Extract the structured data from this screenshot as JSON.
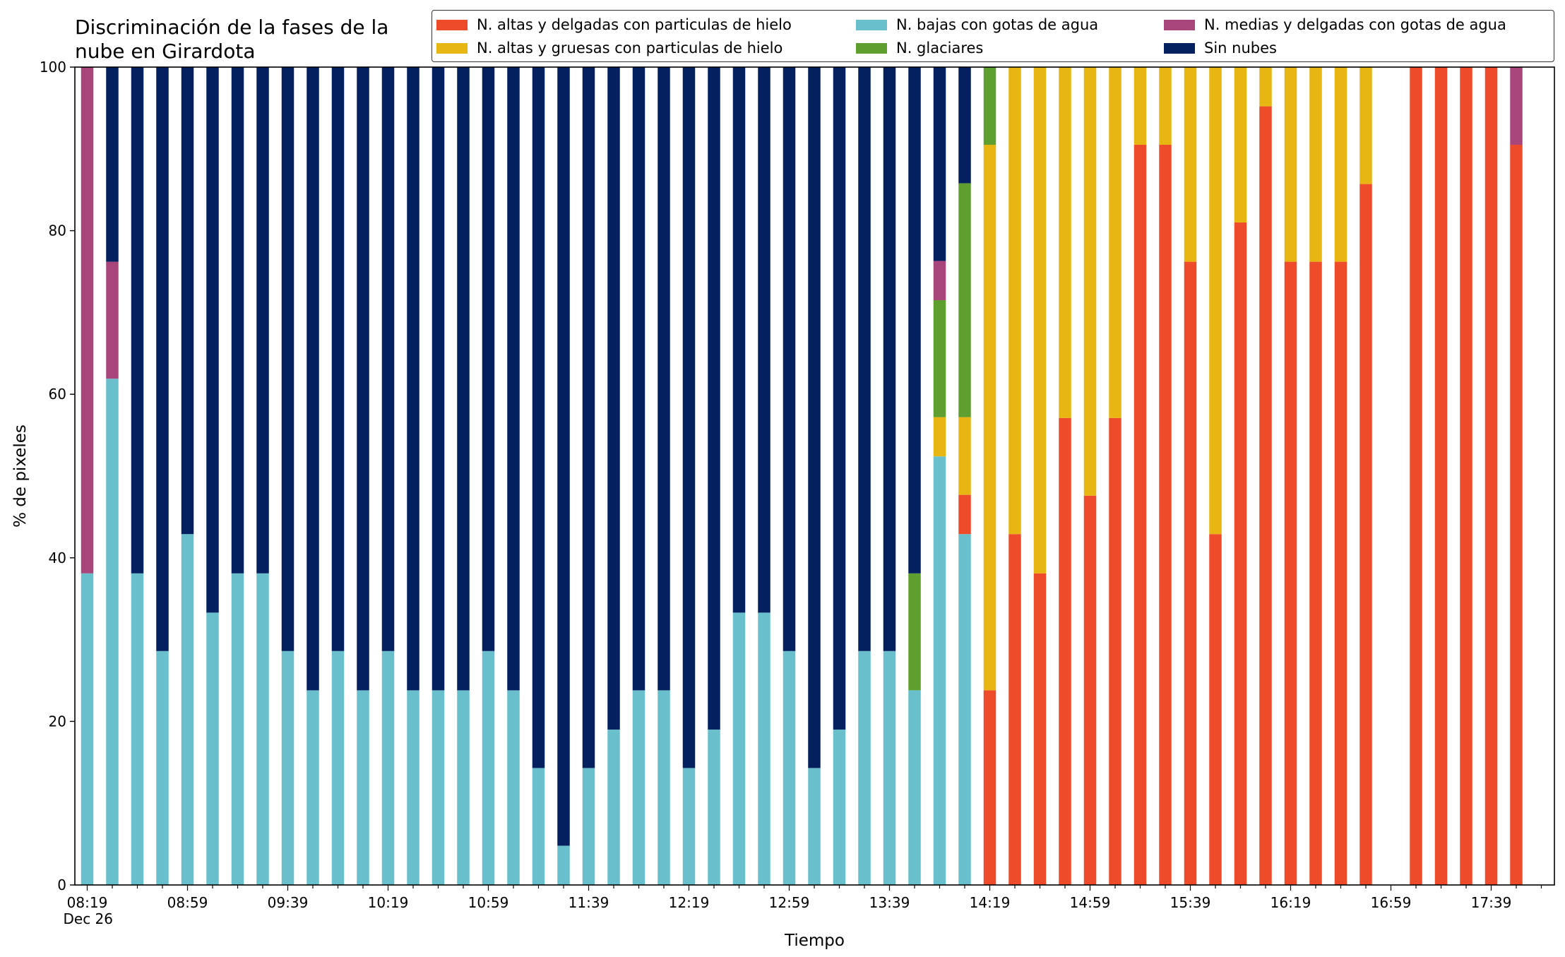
{
  "chart_data": {
    "type": "bar",
    "stacked": true,
    "title": "Discriminación de la fases de la\nnube en Girardota",
    "xlabel": "Tiempo",
    "ylabel": "% de pixeles",
    "ylim": [
      0,
      100
    ],
    "yticks": [
      0,
      20,
      40,
      60,
      80,
      100
    ],
    "xtick_labels": [
      "08:19\nDec 26",
      "08:59",
      "09:39",
      "10:19",
      "10:59",
      "11:39",
      "12:19",
      "12:59",
      "13:39",
      "14:19",
      "14:59",
      "15:39",
      "16:19",
      "16:59",
      "17:39"
    ],
    "legend_position": "top-right",
    "grid": false,
    "categories": [
      "08:19",
      "08:29",
      "08:39",
      "08:49",
      "08:59",
      "09:09",
      "09:19",
      "09:29",
      "09:39",
      "09:49",
      "09:59",
      "10:09",
      "10:19",
      "10:29",
      "10:39",
      "10:49",
      "10:59",
      "11:09",
      "11:19",
      "11:29",
      "11:39",
      "11:49",
      "11:59",
      "12:09",
      "12:19",
      "12:29",
      "12:39",
      "12:49",
      "12:59",
      "13:09",
      "13:19",
      "13:29",
      "13:39",
      "13:49",
      "13:59",
      "14:09",
      "14:19",
      "14:29",
      "14:39",
      "14:49",
      "14:59",
      "15:09",
      "15:19",
      "15:29",
      "15:39",
      "15:49",
      "15:59",
      "16:09",
      "16:19",
      "16:29",
      "16:39",
      "16:49",
      "16:59",
      "17:09",
      "17:19",
      "17:29",
      "17:39",
      "17:49"
    ],
    "series": [
      {
        "name": "N. altas y delgadas con particulas de hielo",
        "color": "#ee4b2b",
        "values": [
          0,
          0,
          0,
          0,
          0,
          0,
          0,
          0,
          0,
          0,
          0,
          0,
          0,
          0,
          0,
          0,
          0,
          0,
          0,
          0,
          0,
          0,
          0,
          0,
          0,
          0,
          0,
          0,
          0,
          0,
          0,
          0,
          0,
          0,
          0,
          4.8,
          23.8,
          42.9,
          38.1,
          57.1,
          47.6,
          57.1,
          90.5,
          90.5,
          76.2,
          42.9,
          81.0,
          95.2,
          76.2,
          76.2,
          76.2,
          85.7,
          0,
          100,
          100,
          100,
          100,
          90.5
        ]
      },
      {
        "name": "N. altas y gruesas con particulas de hielo",
        "color": "#e8b613",
        "values": [
          0,
          0,
          0,
          0,
          0,
          0,
          0,
          0,
          0,
          0,
          0,
          0,
          0,
          0,
          0,
          0,
          0,
          0,
          0,
          0,
          0,
          0,
          0,
          0,
          0,
          0,
          0,
          0,
          0,
          0,
          0,
          0,
          0,
          0,
          4.8,
          9.5,
          66.7,
          57.1,
          61.9,
          42.9,
          52.4,
          42.9,
          9.5,
          9.5,
          23.8,
          57.1,
          19.0,
          4.8,
          23.8,
          23.8,
          23.8,
          14.3,
          0,
          0,
          0,
          0,
          0,
          0
        ]
      },
      {
        "name": "N. bajas con gotas de agua",
        "color": "#69bfcb",
        "values": [
          38.1,
          61.9,
          38.1,
          28.6,
          42.9,
          33.3,
          38.1,
          38.1,
          28.6,
          23.8,
          28.6,
          23.8,
          28.6,
          23.8,
          23.8,
          23.8,
          28.6,
          23.8,
          14.3,
          4.8,
          14.3,
          19.0,
          23.8,
          23.8,
          14.3,
          19.0,
          33.3,
          33.3,
          28.6,
          14.3,
          19.0,
          28.6,
          28.6,
          23.8,
          52.4,
          42.9,
          0,
          0,
          0,
          0,
          0,
          0,
          0,
          0,
          0,
          0,
          0,
          0,
          0,
          0,
          0,
          0,
          0,
          0,
          0,
          0,
          0,
          0
        ]
      },
      {
        "name": "N. glaciares",
        "color": "#5e9f2f",
        "values": [
          0,
          0,
          0,
          0,
          0,
          0,
          0,
          0,
          0,
          0,
          0,
          0,
          0,
          0,
          0,
          0,
          0,
          0,
          0,
          0,
          0,
          0,
          0,
          0,
          0,
          0,
          0,
          0,
          0,
          0,
          0,
          0,
          0,
          14.3,
          14.3,
          28.6,
          9.5,
          0,
          0,
          0,
          0,
          0,
          0,
          0,
          0,
          0,
          0,
          0,
          0,
          0,
          0,
          0,
          0,
          0,
          0,
          0,
          0,
          0
        ]
      },
      {
        "name": "N. medias y delgadas con gotas de agua",
        "color": "#a8467b",
        "values": [
          61.9,
          14.3,
          0,
          0,
          0,
          0,
          0,
          0,
          0,
          0,
          0,
          0,
          0,
          0,
          0,
          0,
          0,
          0,
          0,
          0,
          0,
          0,
          0,
          0,
          0,
          0,
          0,
          0,
          0,
          0,
          0,
          0,
          0,
          0,
          4.8,
          0,
          0,
          0,
          0,
          0,
          0,
          0,
          0,
          0,
          0,
          0,
          0,
          0,
          0,
          0,
          0,
          0,
          0,
          0,
          0,
          0,
          0,
          9.5
        ]
      },
      {
        "name": "Sin nubes",
        "color": "#04205f",
        "values": [
          0,
          23.8,
          61.9,
          71.4,
          57.1,
          66.7,
          61.9,
          61.9,
          71.4,
          76.2,
          71.4,
          76.2,
          71.4,
          76.2,
          76.2,
          76.2,
          71.4,
          76.2,
          85.7,
          95.2,
          85.7,
          81.0,
          76.2,
          76.2,
          85.7,
          81.0,
          66.7,
          66.7,
          71.4,
          85.7,
          81.0,
          71.4,
          71.4,
          61.9,
          23.8,
          14.3,
          0,
          0,
          0,
          0,
          0,
          0,
          0,
          0,
          0,
          0,
          0,
          0,
          0,
          0,
          0,
          0,
          0,
          0,
          0,
          0,
          0,
          0
        ]
      }
    ],
    "legend_order": [
      0,
      1,
      2,
      3,
      4,
      5
    ]
  }
}
